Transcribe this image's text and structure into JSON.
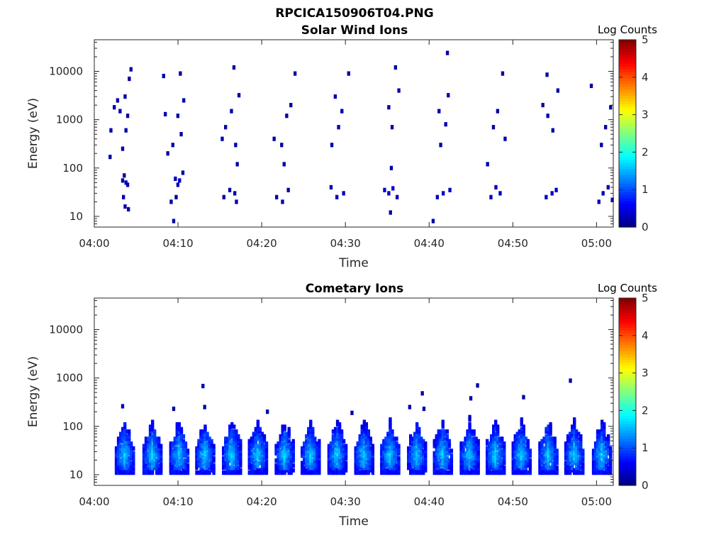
{
  "figure_title": "RPCICA150906T04.PNG",
  "colormap": "jet",
  "chart_data": [
    {
      "type": "heatmap",
      "title": "Solar Wind Ions",
      "xlabel": "Time",
      "ylabel": "Energy (eV)",
      "xlim": [
        "04:00",
        "05:02"
      ],
      "x_ticks": [
        "04:00",
        "04:10",
        "04:20",
        "04:30",
        "04:40",
        "04:50",
        "05:00"
      ],
      "y_scale": "log",
      "ylim": [
        6,
        45000
      ],
      "y_ticks": [
        "10",
        "100",
        "1000",
        "10000"
      ],
      "colorbar": {
        "label": "Log Counts",
        "range": [
          0,
          5
        ],
        "ticks": [
          "0",
          "1",
          "2",
          "3",
          "4",
          "5"
        ]
      },
      "grid": false,
      "burst_centers_min": [
        3.7,
        10.2,
        16.4,
        22.7,
        29.0,
        35.3,
        41.6,
        47.9,
        54.2,
        60.7
      ],
      "points": [
        {
          "t": 3.2,
          "e": 55,
          "c": 0.2
        },
        {
          "t": 3.4,
          "e": 70,
          "c": 0.2
        },
        {
          "t": 3.6,
          "e": 50,
          "c": 0.3
        },
        {
          "t": 3.8,
          "e": 45,
          "c": 0.2
        },
        {
          "t": 3.3,
          "e": 25,
          "c": 0.2
        },
        {
          "t": 3.5,
          "e": 16,
          "c": 0.2
        },
        {
          "t": 3.9,
          "e": 14,
          "c": 0.2
        },
        {
          "t": 3.2,
          "e": 250,
          "c": 0.2
        },
        {
          "t": 3.6,
          "e": 600,
          "c": 0.2
        },
        {
          "t": 3.8,
          "e": 1200,
          "c": 0.2
        },
        {
          "t": 3.5,
          "e": 3000,
          "c": 0.2
        },
        {
          "t": 4.0,
          "e": 7000,
          "c": 0.2
        },
        {
          "t": 4.2,
          "e": 11000,
          "c": 0.2
        },
        {
          "t": 2.9,
          "e": 1500,
          "c": 0.2
        },
        {
          "t": 2.6,
          "e": 2500,
          "c": 0.2
        },
        {
          "t": 1.7,
          "e": 170,
          "c": 0.2
        },
        {
          "t": 1.8,
          "e": 600,
          "c": 0.2
        },
        {
          "t": 2.2,
          "e": 1800,
          "c": 0.2
        },
        {
          "t": 8.1,
          "e": 8000,
          "c": 0.2
        },
        {
          "t": 9.5,
          "e": 60,
          "c": 0.3
        },
        {
          "t": 9.8,
          "e": 45,
          "c": 0.3
        },
        {
          "t": 10.0,
          "e": 55,
          "c": 0.3
        },
        {
          "t": 9.6,
          "e": 25,
          "c": 0.2
        },
        {
          "t": 10.4,
          "e": 80,
          "c": 0.2
        },
        {
          "t": 9.0,
          "e": 20,
          "c": 0.2
        },
        {
          "t": 9.2,
          "e": 300,
          "c": 0.2
        },
        {
          "t": 10.2,
          "e": 500,
          "c": 0.2
        },
        {
          "t": 10.5,
          "e": 2500,
          "c": 0.2
        },
        {
          "t": 9.8,
          "e": 1200,
          "c": 0.2
        },
        {
          "t": 10.1,
          "e": 9000,
          "c": 0.2
        },
        {
          "t": 8.3,
          "e": 1300,
          "c": 0.2
        },
        {
          "t": 8.6,
          "e": 200,
          "c": 0.2
        },
        {
          "t": 9.3,
          "e": 8,
          "c": 0.2
        },
        {
          "t": 15.3,
          "e": 25,
          "c": 0.2
        },
        {
          "t": 16.0,
          "e": 35,
          "c": 0.2
        },
        {
          "t": 16.6,
          "e": 30,
          "c": 0.2
        },
        {
          "t": 16.8,
          "e": 20,
          "c": 0.2
        },
        {
          "t": 15.5,
          "e": 700,
          "c": 0.2
        },
        {
          "t": 16.2,
          "e": 1500,
          "c": 0.2
        },
        {
          "t": 16.7,
          "e": 300,
          "c": 0.2
        },
        {
          "t": 16.5,
          "e": 12000,
          "c": 0.2
        },
        {
          "t": 17.1,
          "e": 3200,
          "c": 0.2
        },
        {
          "t": 15.1,
          "e": 400,
          "c": 0.2
        },
        {
          "t": 16.9,
          "e": 120,
          "c": 0.2
        },
        {
          "t": 21.6,
          "e": 25,
          "c": 0.2
        },
        {
          "t": 22.3,
          "e": 20,
          "c": 0.2
        },
        {
          "t": 23.0,
          "e": 35,
          "c": 0.2
        },
        {
          "t": 22.2,
          "e": 300,
          "c": 0.2
        },
        {
          "t": 22.8,
          "e": 1200,
          "c": 0.2
        },
        {
          "t": 23.3,
          "e": 2000,
          "c": 0.2
        },
        {
          "t": 23.8,
          "e": 9000,
          "c": 0.2
        },
        {
          "t": 21.3,
          "e": 400,
          "c": 0.2
        },
        {
          "t": 22.5,
          "e": 120,
          "c": 0.2
        },
        {
          "t": 28.1,
          "e": 40,
          "c": 0.2
        },
        {
          "t": 28.8,
          "e": 25,
          "c": 0.3
        },
        {
          "t": 29.6,
          "e": 30,
          "c": 0.3
        },
        {
          "t": 29.0,
          "e": 700,
          "c": 0.2
        },
        {
          "t": 29.4,
          "e": 1500,
          "c": 0.2
        },
        {
          "t": 28.6,
          "e": 3000,
          "c": 0.2
        },
        {
          "t": 30.2,
          "e": 9000,
          "c": 0.2
        },
        {
          "t": 28.2,
          "e": 300,
          "c": 0.2
        },
        {
          "t": 34.5,
          "e": 35,
          "c": 0.4
        },
        {
          "t": 35.0,
          "e": 30,
          "c": 0.4
        },
        {
          "t": 35.5,
          "e": 38,
          "c": 0.4
        },
        {
          "t": 36.0,
          "e": 25,
          "c": 0.3
        },
        {
          "t": 35.2,
          "e": 12,
          "c": 0.2
        },
        {
          "t": 35.4,
          "e": 700,
          "c": 0.2
        },
        {
          "t": 35.0,
          "e": 1800,
          "c": 0.2
        },
        {
          "t": 36.2,
          "e": 4000,
          "c": 0.2
        },
        {
          "t": 35.8,
          "e": 12000,
          "c": 0.2
        },
        {
          "t": 35.3,
          "e": 100,
          "c": 0.2
        },
        {
          "t": 40.8,
          "e": 25,
          "c": 0.3
        },
        {
          "t": 41.5,
          "e": 30,
          "c": 0.3
        },
        {
          "t": 42.3,
          "e": 35,
          "c": 0.3
        },
        {
          "t": 41.0,
          "e": 1500,
          "c": 0.2
        },
        {
          "t": 41.8,
          "e": 800,
          "c": 0.2
        },
        {
          "t": 42.1,
          "e": 3200,
          "c": 0.2
        },
        {
          "t": 42.0,
          "e": 24000,
          "c": 0.2
        },
        {
          "t": 40.3,
          "e": 8,
          "c": 0.2
        },
        {
          "t": 41.2,
          "e": 300,
          "c": 0.2
        },
        {
          "t": 47.2,
          "e": 25,
          "c": 0.3
        },
        {
          "t": 47.8,
          "e": 40,
          "c": 0.3
        },
        {
          "t": 48.3,
          "e": 30,
          "c": 0.3
        },
        {
          "t": 47.5,
          "e": 700,
          "c": 0.2
        },
        {
          "t": 48.0,
          "e": 1500,
          "c": 0.2
        },
        {
          "t": 48.9,
          "e": 400,
          "c": 0.2
        },
        {
          "t": 48.6,
          "e": 9000,
          "c": 0.2
        },
        {
          "t": 46.8,
          "e": 120,
          "c": 0.2
        },
        {
          "t": 53.8,
          "e": 25,
          "c": 0.3
        },
        {
          "t": 54.5,
          "e": 30,
          "c": 0.3
        },
        {
          "t": 55.0,
          "e": 35,
          "c": 0.3
        },
        {
          "t": 54.0,
          "e": 1200,
          "c": 0.2
        },
        {
          "t": 54.6,
          "e": 600,
          "c": 0.2
        },
        {
          "t": 55.2,
          "e": 4000,
          "c": 0.2
        },
        {
          "t": 53.9,
          "e": 8500,
          "c": 0.2
        },
        {
          "t": 53.4,
          "e": 2000,
          "c": 0.2
        },
        {
          "t": 60.1,
          "e": 20,
          "c": 0.3
        },
        {
          "t": 60.6,
          "e": 30,
          "c": 0.3
        },
        {
          "t": 61.2,
          "e": 40,
          "c": 0.3
        },
        {
          "t": 61.7,
          "e": 22,
          "c": 0.3
        },
        {
          "t": 60.9,
          "e": 700,
          "c": 0.2
        },
        {
          "t": 61.5,
          "e": 1800,
          "c": 0.2
        },
        {
          "t": 61.9,
          "e": 4500,
          "c": 0.2
        },
        {
          "t": 60.4,
          "e": 300,
          "c": 0.2
        },
        {
          "t": 59.2,
          "e": 5000,
          "c": 0.2
        }
      ]
    },
    {
      "type": "heatmap",
      "title": "Cometary Ions",
      "xlabel": "Time",
      "ylabel": "Energy (eV)",
      "xlim": [
        "04:00",
        "05:02"
      ],
      "x_ticks": [
        "04:00",
        "04:10",
        "04:20",
        "04:30",
        "04:40",
        "04:50",
        "05:00"
      ],
      "y_scale": "log",
      "ylim": [
        6,
        45000
      ],
      "y_ticks": [
        "10",
        "100",
        "1000",
        "10000"
      ],
      "colorbar": {
        "label": "Log Counts",
        "range": [
          0,
          5
        ],
        "ticks": [
          "0",
          "1",
          "2",
          "3",
          "4",
          "5"
        ]
      },
      "grid": false,
      "burst_energy_range_eV": [
        11,
        160
      ],
      "burst_peak_log_counts": 1.7,
      "burst_centers_min": [
        3.6,
        6.9,
        10.1,
        13.2,
        16.4,
        19.5,
        22.7,
        25.8,
        29.0,
        32.2,
        35.3,
        38.5,
        41.6,
        44.8,
        47.9,
        51.0,
        54.2,
        57.3,
        60.6
      ],
      "points": [
        {
          "t": 3.2,
          "e": 260,
          "c": 0.3
        },
        {
          "t": 9.3,
          "e": 230,
          "c": 0.2
        },
        {
          "t": 12.8,
          "e": 680,
          "c": 0.2
        },
        {
          "t": 13.0,
          "e": 250,
          "c": 0.2
        },
        {
          "t": 20.5,
          "e": 200,
          "c": 0.2
        },
        {
          "t": 30.6,
          "e": 190,
          "c": 0.2
        },
        {
          "t": 37.5,
          "e": 250,
          "c": 0.2
        },
        {
          "t": 39.0,
          "e": 480,
          "c": 0.2
        },
        {
          "t": 39.2,
          "e": 230,
          "c": 0.2
        },
        {
          "t": 44.8,
          "e": 380,
          "c": 0.2
        },
        {
          "t": 45.6,
          "e": 700,
          "c": 0.2
        },
        {
          "t": 51.1,
          "e": 400,
          "c": 0.2
        },
        {
          "t": 56.7,
          "e": 880,
          "c": 0.2
        },
        {
          "t": 9.9,
          "e": 6,
          "c": 0.3
        },
        {
          "t": 12.9,
          "e": 6,
          "c": 0.2
        }
      ]
    }
  ]
}
